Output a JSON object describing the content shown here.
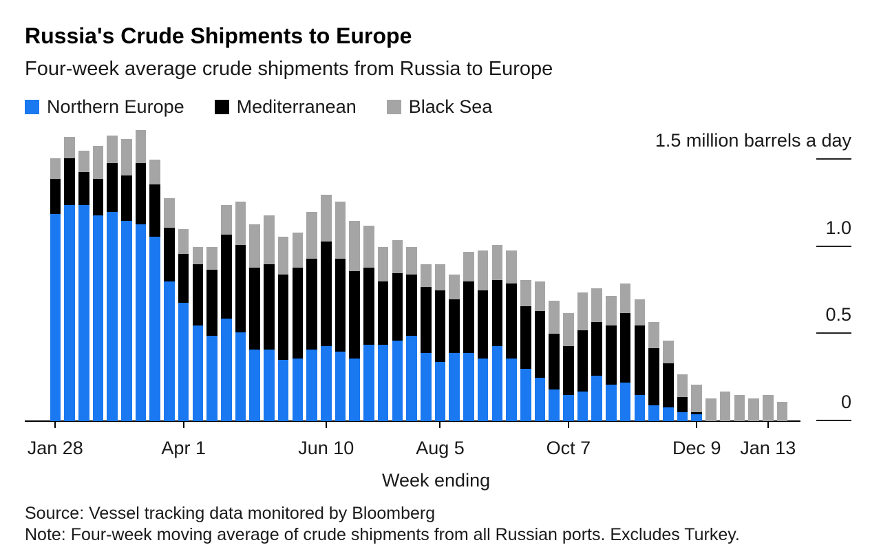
{
  "page": {
    "title": "Russia's Crude Shipments to Europe",
    "subtitle": "Four-week average crude shipments from Russia to Europe"
  },
  "legend": {
    "items": [
      {
        "label": "Northern Europe",
        "color": "#1a78f0"
      },
      {
        "label": "Mediterranean",
        "color": "#000000"
      },
      {
        "label": "Black Sea",
        "color": "#a5a5a5"
      }
    ]
  },
  "axis": {
    "x_title": "Week ending",
    "x_ticks": [
      {
        "label": "Jan 28",
        "index": 0
      },
      {
        "label": "Apr 1",
        "index": 9
      },
      {
        "label": "Jun 10",
        "index": 19
      },
      {
        "label": "Aug 5",
        "index": 27
      },
      {
        "label": "Oct 7",
        "index": 36
      },
      {
        "label": "Dec 9",
        "index": 45
      },
      {
        "label": "Jan 13",
        "index": 50
      }
    ],
    "y_ticks": [
      {
        "label": "1.5 million barrels a day",
        "value": 1.5
      },
      {
        "label": "1.0",
        "value": 1.0
      },
      {
        "label": "0.5",
        "value": 0.5
      },
      {
        "label": "0",
        "value": 0
      }
    ]
  },
  "footer": {
    "source": "Source: Vessel tracking data monitored by Bloomberg",
    "note": "Note: Four-week moving average of crude shipments from all Russian ports. Excludes Turkey."
  },
  "chart_data": {
    "type": "bar",
    "stacked": true,
    "title": "Russia's Crude Shipments to Europe",
    "subtitle": "Four-week average crude shipments from Russia to Europe",
    "xlabel": "Week ending",
    "ylabel": "million barrels a day",
    "ylim": [
      0,
      1.7
    ],
    "y_tick_values": [
      0,
      0.5,
      1.0,
      1.5
    ],
    "grid": false,
    "legend_position": "top",
    "categories": [
      "Jan 28",
      "Feb 4",
      "Feb 11",
      "Feb 18",
      "Feb 25",
      "Mar 4",
      "Mar 11",
      "Mar 18",
      "Mar 25",
      "Apr 1",
      "Apr 8",
      "Apr 15",
      "Apr 22",
      "Apr 29",
      "May 6",
      "May 13",
      "May 20",
      "May 27",
      "Jun 3",
      "Jun 10",
      "Jun 17",
      "Jun 24",
      "Jul 1",
      "Jul 8",
      "Jul 15",
      "Jul 22",
      "Jul 29",
      "Aug 5",
      "Aug 12",
      "Aug 19",
      "Aug 26",
      "Sep 2",
      "Sep 9",
      "Sep 16",
      "Sep 23",
      "Sep 30",
      "Oct 7",
      "Oct 14",
      "Oct 21",
      "Oct 28",
      "Nov 4",
      "Nov 11",
      "Nov 18",
      "Nov 25",
      "Dec 2",
      "Dec 9",
      "Dec 16",
      "Dec 23",
      "Dec 30",
      "Jan 6",
      "Jan 13",
      "Jan 20"
    ],
    "series": [
      {
        "name": "Northern Europe",
        "color": "#1a78f0",
        "values": [
          1.19,
          1.24,
          1.24,
          1.18,
          1.2,
          1.15,
          1.13,
          1.06,
          0.8,
          0.68,
          0.55,
          0.49,
          0.59,
          0.51,
          0.41,
          0.41,
          0.35,
          0.36,
          0.41,
          0.43,
          0.4,
          0.36,
          0.44,
          0.44,
          0.46,
          0.49,
          0.39,
          0.34,
          0.39,
          0.39,
          0.36,
          0.43,
          0.36,
          0.3,
          0.25,
          0.18,
          0.15,
          0.17,
          0.26,
          0.21,
          0.22,
          0.15,
          0.09,
          0.08,
          0.05,
          0.04,
          0,
          0,
          0,
          0,
          0,
          0
        ]
      },
      {
        "name": "Mediterranean",
        "color": "#000000",
        "values": [
          0.2,
          0.27,
          0.19,
          0.21,
          0.28,
          0.26,
          0.35,
          0.3,
          0.31,
          0.28,
          0.35,
          0.38,
          0.48,
          0.5,
          0.47,
          0.49,
          0.49,
          0.52,
          0.52,
          0.6,
          0.53,
          0.5,
          0.44,
          0.36,
          0.39,
          0.35,
          0.38,
          0.41,
          0.31,
          0.41,
          0.39,
          0.38,
          0.43,
          0.36,
          0.38,
          0.32,
          0.28,
          0.35,
          0.31,
          0.34,
          0.4,
          0.4,
          0.33,
          0.25,
          0.09,
          0.01,
          0,
          0,
          0,
          0,
          0,
          0
        ]
      },
      {
        "name": "Black Sea",
        "color": "#a5a5a5",
        "values": [
          0.12,
          0.12,
          0.12,
          0.19,
          0.16,
          0.21,
          0.19,
          0.14,
          0.17,
          0.14,
          0.1,
          0.13,
          0.17,
          0.25,
          0.25,
          0.28,
          0.22,
          0.2,
          0.27,
          0.27,
          0.33,
          0.29,
          0.24,
          0.2,
          0.19,
          0.16,
          0.13,
          0.15,
          0.14,
          0.17,
          0.23,
          0.2,
          0.19,
          0.15,
          0.17,
          0.19,
          0.19,
          0.22,
          0.19,
          0.17,
          0.17,
          0.15,
          0.15,
          0.13,
          0.13,
          0.16,
          0.13,
          0.17,
          0.15,
          0.13,
          0.15,
          0.11
        ]
      }
    ]
  }
}
